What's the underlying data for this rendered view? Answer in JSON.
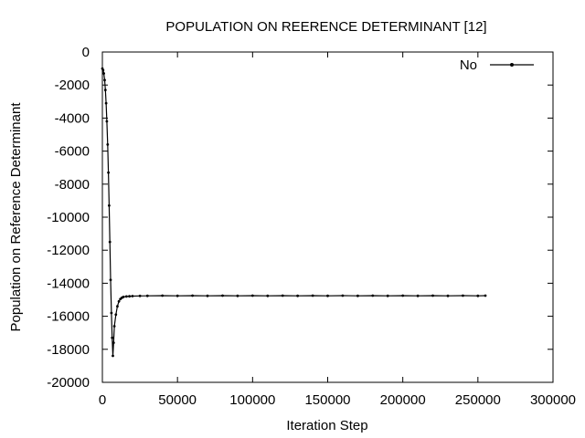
{
  "chart_data": {
    "type": "line",
    "title": "POPULATION ON REERENCE DETERMINANT [12]",
    "xlabel": "Iteration Step",
    "ylabel": "Population on Reference Determinant",
    "xlim": [
      0,
      300000
    ],
    "ylim": [
      -20000,
      0
    ],
    "xticks": [
      0,
      50000,
      100000,
      150000,
      200000,
      250000,
      300000
    ],
    "yticks": [
      0,
      -2000,
      -4000,
      -6000,
      -8000,
      -10000,
      -12000,
      -14000,
      -16000,
      -18000,
      -20000
    ],
    "grid": false,
    "legend": {
      "position": "top-right"
    },
    "series": [
      {
        "name": "No",
        "color": "#000000",
        "marker": "point",
        "x": [
          0,
          500,
          1000,
          1500,
          2000,
          2500,
          3000,
          3500,
          4000,
          4500,
          5000,
          5500,
          6000,
          6500,
          7000,
          7500,
          8000,
          9000,
          10000,
          11000,
          12000,
          13000,
          14000,
          16000,
          18000,
          20000,
          25000,
          30000,
          40000,
          50000,
          60000,
          70000,
          80000,
          90000,
          100000,
          110000,
          120000,
          130000,
          140000,
          150000,
          160000,
          170000,
          180000,
          190000,
          200000,
          210000,
          220000,
          230000,
          240000,
          250000,
          255000
        ],
        "y": [
          -1000,
          -1100,
          -1300,
          -1700,
          -2300,
          -3100,
          -4200,
          -5600,
          -7300,
          -9300,
          -11500,
          -13800,
          -15800,
          -17300,
          -18400,
          -17600,
          -16600,
          -15900,
          -15400,
          -15100,
          -14950,
          -14880,
          -14830,
          -14800,
          -14790,
          -14780,
          -14770,
          -14760,
          -14750,
          -14760,
          -14750,
          -14760,
          -14750,
          -14760,
          -14750,
          -14760,
          -14750,
          -14760,
          -14750,
          -14760,
          -14750,
          -14760,
          -14750,
          -14760,
          -14750,
          -14760,
          -14750,
          -14760,
          -14750,
          -14760,
          -14750
        ]
      }
    ]
  }
}
